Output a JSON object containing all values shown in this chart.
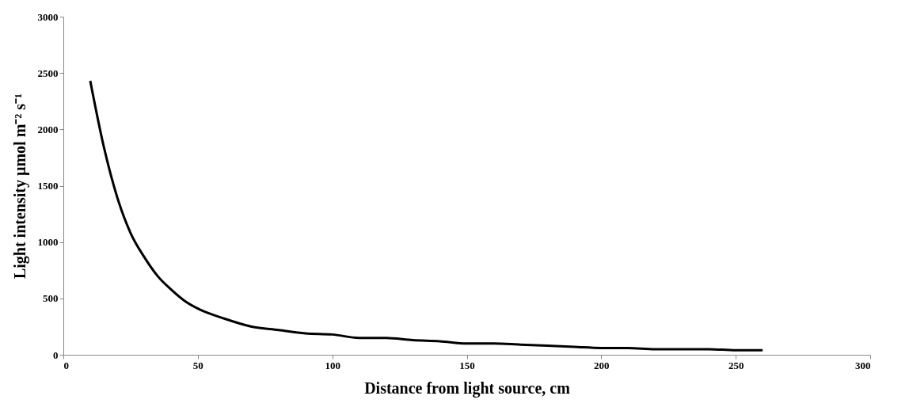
{
  "chart_data": {
    "type": "line",
    "xlabel": "Distance from light source, cm",
    "ylabel": "Light intensity µmol m⁻² s⁻¹",
    "x": [
      10,
      15,
      20,
      25,
      30,
      35,
      40,
      45,
      50,
      60,
      70,
      80,
      90,
      100,
      110,
      120,
      130,
      140,
      150,
      160,
      170,
      180,
      190,
      200,
      210,
      220,
      230,
      240,
      250,
      260
    ],
    "series": [
      {
        "color": "#000000",
        "values": [
          2430,
          1850,
          1400,
          1080,
          870,
          700,
          580,
          480,
          410,
          320,
          250,
          220,
          190,
          180,
          150,
          150,
          130,
          120,
          100,
          100,
          90,
          80,
          70,
          60,
          60,
          50,
          50,
          50,
          40,
          40
        ]
      }
    ],
    "xlim": [
      0,
      300
    ],
    "xticks": [
      0,
      50,
      100,
      150,
      200,
      250,
      300
    ],
    "ylim": [
      0,
      3000
    ],
    "yticks": [
      0,
      500,
      1000,
      1500,
      2000,
      2500,
      3000
    ],
    "grid": false,
    "legend": false,
    "marker": "none",
    "line_style": "solid"
  }
}
